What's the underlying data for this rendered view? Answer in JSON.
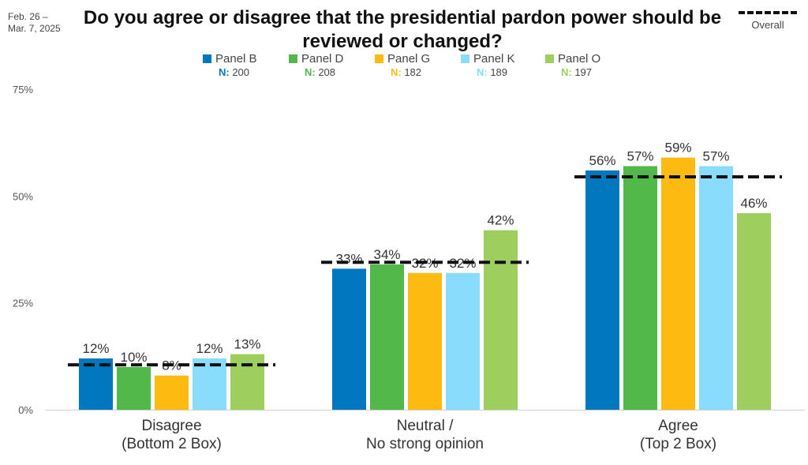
{
  "header": {
    "date": "Feb. 26 – Mar. 7, 2025",
    "title": "Do you agree or disagree that the presidential pardon power should be reviewed or changed?",
    "overall_label": "Overall"
  },
  "legend": [
    {
      "name": "Panel B",
      "n_label": "N:",
      "n": "200",
      "color": "#0077be"
    },
    {
      "name": "Panel D",
      "n_label": "N:",
      "n": "208",
      "color": "#51b849"
    },
    {
      "name": "Panel G",
      "n_label": "N:",
      "n": "182",
      "color": "#fdbb11"
    },
    {
      "name": "Panel K",
      "n_label": "N:",
      "n": "189",
      "color": "#8adcfc"
    },
    {
      "name": "Panel O",
      "n_label": "N:",
      "n": "197",
      "color": "#9ecf5e"
    }
  ],
  "chart_data": {
    "type": "bar",
    "title": "Do you agree or disagree that the presidential pardon power should be reviewed or changed?",
    "categories": [
      "Disagree\n(Bottom 2 Box)",
      "Neutral /\nNo strong opinion",
      "Agree\n(Top 2 Box)"
    ],
    "series": [
      {
        "name": "Panel B",
        "values": [
          12,
          33,
          56
        ],
        "labels": [
          "12%",
          "33%",
          "56%"
        ],
        "color": "#0077be"
      },
      {
        "name": "Panel D",
        "values": [
          10,
          34,
          57
        ],
        "labels": [
          "10%",
          "34%",
          "57%"
        ],
        "color": "#51b849"
      },
      {
        "name": "Panel G",
        "values": [
          8,
          32,
          59
        ],
        "labels": [
          "8%",
          "32%",
          "59%"
        ],
        "color": "#fdbb11"
      },
      {
        "name": "Panel K",
        "values": [
          12,
          32,
          57
        ],
        "labels": [
          "12%",
          "32%",
          "57%"
        ],
        "color": "#8adcfc"
      },
      {
        "name": "Panel O",
        "values": [
          13,
          42,
          46
        ],
        "labels": [
          "13%",
          "42%",
          "46%"
        ],
        "color": "#9ecf5e"
      }
    ],
    "overall": {
      "name": "Overall",
      "values": [
        10.5,
        34.5,
        54.5
      ]
    },
    "ylim": [
      0,
      75
    ],
    "yticks": [
      0,
      25,
      50,
      75
    ],
    "ytick_labels": [
      "0%",
      "25%",
      "50%",
      "75%"
    ],
    "grid": false,
    "legend_position": "top"
  }
}
